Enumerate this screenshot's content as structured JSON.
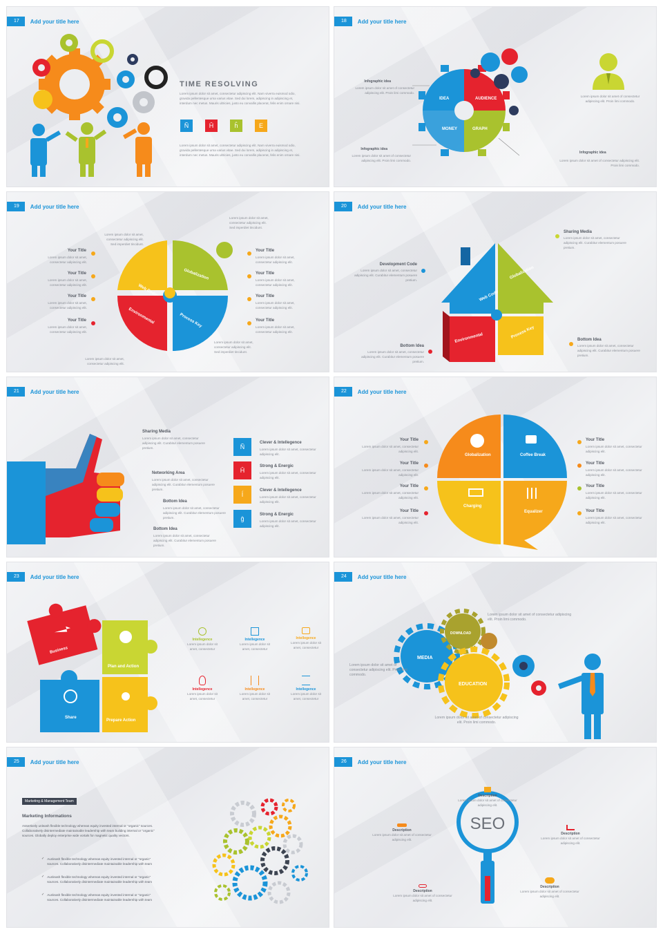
{
  "common": {
    "slide_title": "Add your title here"
  },
  "s17": {
    "num": "17",
    "heading": "TIME RESOLVING",
    "para1": "Lorem ipsum dolor sit amet, consectetur adipiscing elit. Nam viverra euismod odio, gravida pellentesque urna varius vitae. Sed dui lorem, adipiscing in adipiscing et, interdum nec metus. Mauris ultricies, justo eu convallis placerat, felis enim ornare nisi.",
    "para2": "Lorem ipsum dolor sit amet, consectetur adipiscing elit. Nam viverra euismod odio, gravida pellentesque urna varius vitae. Sed dui lorem, adipiscing in adipiscing et, interdum nec metus. Mauris ultricies, justo eu convallis placerat, felis enim ornare nisi.",
    "squares": [
      {
        "glyph": "Ñ",
        "color": "#1b94d8"
      },
      {
        "glyph": "Ĥ",
        "color": "#e5232e"
      },
      {
        "glyph": "ĥ",
        "color": "#a9c22e"
      },
      {
        "glyph": "E",
        "color": "#f6a81b"
      }
    ]
  },
  "s18": {
    "num": "18",
    "idea1_title": "Infographic idea",
    "idea1_text": "Lorem ipsum dolor sit amet of consectetur adipiscing elit. Proin  limi commodo.",
    "idea2_title": "Infographic idea",
    "idea2_text": "Lorem ipsum dolor sit amet of consectetur adipiscing elit. Proin  limi commodo.",
    "idea3_title": "Infographic idea",
    "idea3_text": "Lorem ipsum dolor sit amet of consectetur adipiscing elit. Proin  limi commodo.",
    "person_text": "Lorem ipsum dolor sit amet of consectetur adipiscing elit. Proin  limi commodo.",
    "seg_idea": "IDEA",
    "seg_audience": "AUDIENCE",
    "seg_money": "MONEY",
    "seg_graph": "GRAPH"
  },
  "s19": {
    "num": "19",
    "left": [
      {
        "title": "Your Title",
        "text": "Lorem ipsum dolor sit amet, consectetur adipiscing elit.",
        "color": "#f6a81b"
      },
      {
        "title": "Your Title",
        "text": "Lorem ipsum dolor sit amet, consectetur adipiscing elit.",
        "color": "#f6a81b"
      },
      {
        "title": "Your Title",
        "text": "Lorem ipsum dolor sit amet, consectetur adipiscing elit.",
        "color": "#f6a81b"
      },
      {
        "title": "Your Title",
        "text": "Lorem ipsum dolor sit amet, consectetur adipiscing elit.",
        "color": "#e5232e"
      }
    ],
    "right": [
      {
        "title": "Your Title",
        "text": "Lorem ipsum dolor sit amet, consectetur adipiscing elit.",
        "color": "#f6a81b"
      },
      {
        "title": "Your Title",
        "text": "Lorem ipsum dolor sit amet, consectetur adipiscing elit.",
        "color": "#f6a81b"
      },
      {
        "title": "Your Title",
        "text": "Lorem ipsum dolor sit amet, consectetur adipiscing elit.",
        "color": "#f6a81b"
      },
      {
        "title": "Your Title",
        "text": "Lorem ipsum dolor sit amet, consectetur adipiscing elit.",
        "color": "#f6a81b"
      }
    ],
    "note_tl": "Lorem ipsum dolor sit amet, consectetur adipiscing elit. Sed imperdiet tincidunt.",
    "note_tr": "Lorem ipsum dolor sit amet, consectetur adipiscing elit. Sed imperdiet tincidunt.",
    "note_bl": "Lorem ipsum dolor sit amet, consectetur adipiscing elit.",
    "note_br": "Lorem ipsum dolor sit amet, consectetur adipiscing elit. Sed imperdiet tincidunt.",
    "p_web": "Web Coding",
    "p_glob": "Globalization",
    "p_env": "Environmental",
    "p_proc": "Process Key"
  },
  "s20": {
    "num": "20",
    "sharing_title": "Sharing Media",
    "sharing_text": "Lorem ipsum dolor sit amet, consectetur adipiscing elit. Curabitur elementum posuere pretium.",
    "dev_title": "Development Code",
    "dev_text": "Lorem ipsum dolor sit amet, consectetur adipiscing elit. Curabitur elementum posuere pretium.",
    "bottom_l_title": "Bottom Idea",
    "bottom_l_text": "Lorem ipsum dolor sit amet, consectetur adipiscing elit. Curabitur elementum posuere pretium.",
    "bottom_r_title": "Bottom Idea",
    "bottom_r_text": "Lorem ipsum dolor sit amet, consectetur adipiscing elit. Curabitur elementum posuere pretium.",
    "p_glob": "Globalization",
    "p_web": "Web Coding",
    "p_env": "Environmental",
    "p_proc": "Process Key"
  },
  "s21": {
    "num": "21",
    "items": [
      {
        "title": "Sharing Media",
        "text": "Lorem ipsum dolor sit amet, consectetur adipiscing elit. Curabitur elementum posuere pretium."
      },
      {
        "title": "Networking Area",
        "text": "Lorem ipsum dolor sit amet, consectetur adipiscing elit. Curabitur elementum posuere pretium."
      },
      {
        "title": "Bottom Idea",
        "text": "Lorem ipsum dolor sit amet, consectetur adipiscing elit. Curabitur elementum posuere pretium."
      },
      {
        "title": "Bottom Idea",
        "text": "Lorem ipsum dolor sit amet, consectetur adipiscing elit. Curabitur elementum posuere pretium."
      }
    ],
    "right": [
      {
        "glyph": "Ñ",
        "color": "#1b94d8",
        "title": "Clever & Intellegence",
        "text": "Lorem ipsum dolor sit amet, consectetur adipiscing elit."
      },
      {
        "glyph": "Ĥ",
        "color": "#e5232e",
        "title": "Strong & Energic",
        "text": "Lorem ipsum dolor sit amet, consectetur adipiscing elit."
      },
      {
        "glyph": "ĺ",
        "color": "#f6a81b",
        "title": "Clever & Intellegence",
        "text": "Lorem ipsum dolor sit amet, consectetur adipiscing elit."
      },
      {
        "glyph": "ĝ",
        "color": "#1b94d8",
        "title": "Strong & Energic",
        "text": "Lorem ipsum dolor sit amet, consectetur adipiscing elit."
      }
    ]
  },
  "s22": {
    "num": "22",
    "left": [
      {
        "title": "Your Title",
        "text": "Lorem ipsum dolor sit amet, consectetur adipiscing elit.",
        "color": "#f6a81b"
      },
      {
        "title": "Your Title",
        "text": "Lorem ipsum dolor sit amet, consectetur adipiscing elit.",
        "color": "#f68b1b"
      },
      {
        "title": "Your Title",
        "text": "Lorem ipsum dolor sit amet, consectetur adipiscing elit.",
        "color": "#f6a81b"
      },
      {
        "title": "Your Title",
        "text": "Lorem ipsum dolor sit amet, consectetur adipiscing elit.",
        "color": "#e5232e"
      }
    ],
    "right": [
      {
        "title": "Your Title",
        "text": "Lorem ipsum dolor sit amet, consectetur adipiscing elit.",
        "color": "#f6a81b"
      },
      {
        "title": "Your Title",
        "text": "Lorem ipsum dolor sit amet, consectetur adipiscing elit.",
        "color": "#f68b1b"
      },
      {
        "title": "Your Title",
        "text": "Lorem ipsum dolor sit amet, consectetur adipiscing elit.",
        "color": "#a9c22e"
      },
      {
        "title": "Your Title",
        "text": "Lorem ipsum dolor sit amet, consectetur adipiscing elit.",
        "color": "#f6a81b"
      }
    ],
    "p_glob": "Globalization",
    "p_coffee": "Coffee Break",
    "p_charging": "Charging",
    "p_equalizer": "Equalizer"
  },
  "s23": {
    "num": "23",
    "p_business": "Business",
    "p_plan": "Plan and Action",
    "p_share": "Share",
    "p_prepare": "Prepare Action",
    "items": [
      {
        "title": "Intellegence",
        "text": "Lorem ipsum dolor sit amet, consectetur",
        "color": "#a9c22e"
      },
      {
        "title": "Intellegence",
        "text": "Lorem ipsum dolor sit amet, consectetur",
        "color": "#1b94d8"
      },
      {
        "title": "Intellegence",
        "text": "Lorem ipsum dolor sit amet, consectetur",
        "color": "#f6a81b"
      },
      {
        "title": "Intellegence",
        "text": "Lorem ipsum dolor sit amet, consectetur",
        "color": "#e5232e"
      },
      {
        "title": "Intellegence",
        "text": "Lorem ipsum dolor sit amet, consectetur",
        "color": "#f68b1b"
      },
      {
        "title": "Intellegence",
        "text": "Lorem ipsum dolor sit amet, consectetur",
        "color": "#1b94d8"
      }
    ]
  },
  "s24": {
    "num": "24",
    "text_top": "Lorem ipsum dolor sit amet of consectetur adipiscing elit. Proin  limi commodo.",
    "text_left": "Lorem ipsum dolor sit amet of consectetur adipiscing elit. Proin  limi commodo.",
    "text_bottom": "Lorem ipsum dolor sit amet of consectetur adipiscing elit. Proin  limi commodo.",
    "g_media": "MEDIA",
    "g_download": "DOWNLOAD",
    "g_education": "EDUCATION"
  },
  "s25": {
    "num": "25",
    "badge": "Marketing & Management Team",
    "heading": "Marketing Informations",
    "para": "Assertively unleash flexible technology whereas equity invested internal or \"organic\" sources. Collaboratively disintermediate maintainable leadership with team building internal or \"organic\" sources. Globally deploy enterprise wide vortals for magnetic quality vectors.",
    "bullets": [
      "Aunleash flexible technology whereas equity invested internal or \"organic\" sources. Collaboratively disintermediate maintainable leadership with team",
      "Aunleash flexible technology whereas equity invested internal or \"organic\" sources. Collaboratively disintermediate maintainable leadership with team",
      "Aunleash flexible technology whereas equity invested internal or \"organic\" sources. Collaboratively disintermediate maintainable leadership with team"
    ]
  },
  "s26": {
    "num": "26",
    "seo": "SEO",
    "top_title": "Description",
    "top_text": "Lorem ipsum dolor sit amet of consectetur adipiscing elit.",
    "left_title": "Description",
    "left_text": "Lorem ipsum dolor sit amet of consectetur adipiscing elit.",
    "right_title": "Description",
    "right_text": "Lorem ipsum dolor sit amet of consectetur adipiscing elit.",
    "bl_title": "Description",
    "bl_text": "Lorem ipsum dolor sit amet of consectetur adipiscing elit.",
    "br_title": "Description",
    "br_text": "Lorem ipsum dolor sit amet of consectetur adipiscing elit."
  }
}
